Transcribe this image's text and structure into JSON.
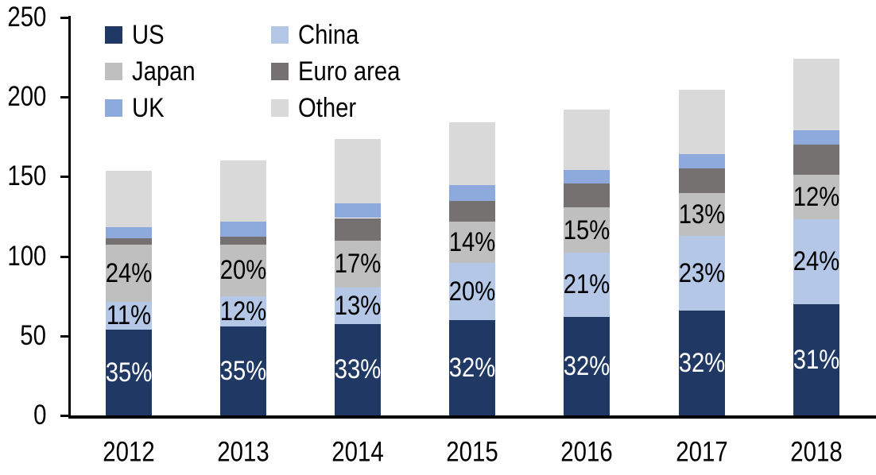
{
  "chart_data": {
    "type": "bar",
    "stacked": true,
    "title": "",
    "categories": [
      "2012",
      "2013",
      "2014",
      "2015",
      "2016",
      "2017",
      "2018"
    ],
    "y_axis": {
      "min": 0,
      "max": 250,
      "step": 50,
      "tick_labels": [
        "0",
        "50",
        "100",
        "150",
        "200",
        "250"
      ],
      "tick_values": [
        0,
        50,
        100,
        150,
        200,
        250
      ]
    },
    "grid": "off",
    "legend": {
      "position": "top-left",
      "items": [
        "US",
        "China",
        "Japan",
        "Euro area",
        "UK",
        "Other"
      ]
    },
    "series": [
      {
        "name": "US",
        "color": "#1f3864",
        "label_color": "#ffffff",
        "values": [
          54,
          56,
          57.5,
          60,
          62,
          66,
          70
        ],
        "pct_labels": [
          "35%",
          "35%",
          "33%",
          "32%",
          "32%",
          "32%",
          "31%"
        ]
      },
      {
        "name": "China",
        "color": "#b4c7e7",
        "label_color": "#000000",
        "values": [
          17.5,
          19,
          23,
          36,
          40.5,
          47,
          53.5
        ],
        "pct_labels": [
          "11%",
          "12%",
          "13%",
          "20%",
          "21%",
          "23%",
          "24%"
        ]
      },
      {
        "name": "Japan",
        "color": "#bfbfbf",
        "label_color": "#000000",
        "values": [
          36,
          32.5,
          29.5,
          26,
          28,
          26.5,
          27.5
        ],
        "pct_labels": [
          "24%",
          "20%",
          "17%",
          "14%",
          "15%",
          "13%",
          "12%"
        ]
      },
      {
        "name": "Euro area",
        "color": "#757171",
        "label_color": "#000000",
        "values": [
          4,
          5,
          14,
          12.5,
          15,
          15.5,
          19
        ],
        "pct_labels": null
      },
      {
        "name": "UK",
        "color": "#8ea9db",
        "label_color": "#000000",
        "values": [
          7,
          9.5,
          9,
          10,
          8.5,
          9,
          9
        ],
        "pct_labels": null
      },
      {
        "name": "Other",
        "color": "#d9d9d9",
        "label_color": "#000000",
        "values": [
          35,
          38,
          40.5,
          39.5,
          38,
          40.5,
          45
        ],
        "pct_labels": null
      }
    ],
    "totals_approx": [
      153.5,
      160,
      173.5,
      184,
      192,
      204.5,
      224
    ]
  }
}
